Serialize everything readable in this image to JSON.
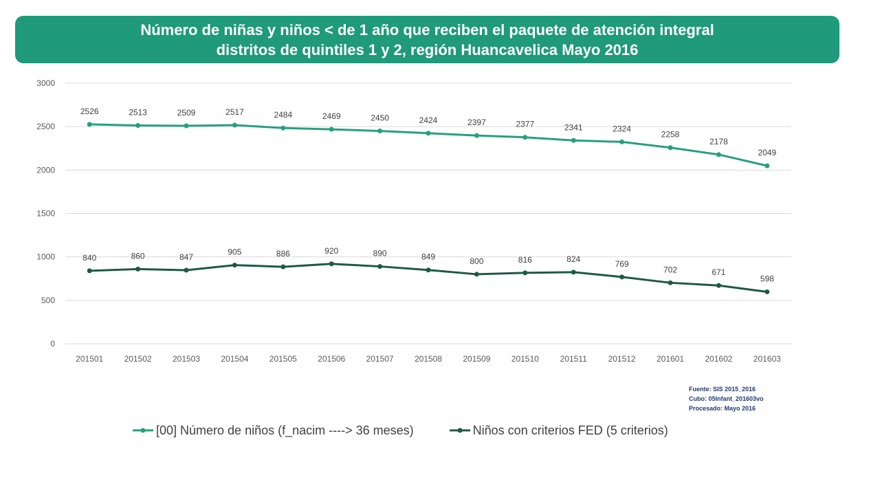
{
  "title": {
    "line1": "Número de niñas y niños < de 1 año que reciben el paquete de atención integral",
    "line2": "distritos de quintiles 1 y 2, región Huancavelica Mayo 2016"
  },
  "source": {
    "line1": "Fuente: SIS 2015_2016",
    "line2": "Cubo: 05Infant_201603vo",
    "line3": "Procesado: Mayo 2016"
  },
  "colors": {
    "banner": "#1f9a7a",
    "series1": "#26a07e",
    "series2": "#1c5a45",
    "grid": "#d9d9d9",
    "tick": "#595959"
  },
  "chart_data": {
    "type": "line",
    "x": [
      "201501",
      "201502",
      "201503",
      "201504",
      "201505",
      "201506",
      "201507",
      "201508",
      "201509",
      "201510",
      "201511",
      "201512",
      "201601",
      "201602",
      "201603"
    ],
    "ylim": [
      0,
      3000
    ],
    "yticks": [
      0,
      500,
      1000,
      1500,
      2000,
      2500,
      3000
    ],
    "grid": true,
    "legend": "bottom",
    "series": [
      {
        "name": "[00] Número de niños (f_nacim ----> 36 meses)",
        "color": "#26a07e",
        "values": [
          2526,
          2513,
          2509,
          2517,
          2484,
          2469,
          2450,
          2424,
          2397,
          2377,
          2341,
          2324,
          2258,
          2178,
          2049
        ]
      },
      {
        "name": "Niños con criterios FED (5 criterios)",
        "color": "#1c5a45",
        "values": [
          840,
          860,
          847,
          905,
          886,
          920,
          890,
          849,
          800,
          816,
          824,
          769,
          702,
          671,
          598
        ]
      }
    ]
  }
}
